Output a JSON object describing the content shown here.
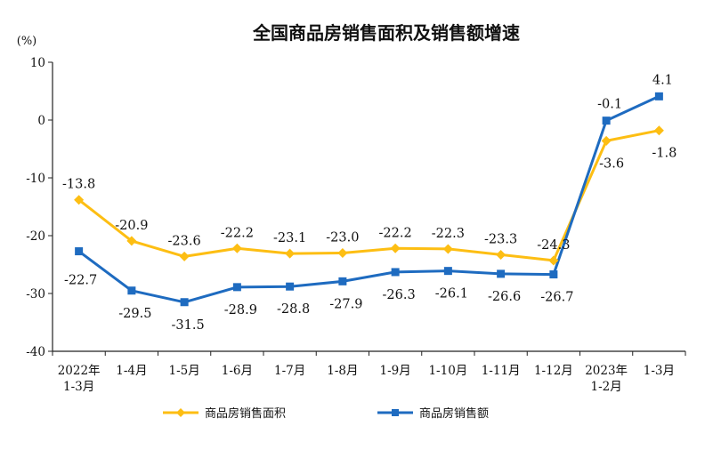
{
  "chart_data": {
    "type": "line",
    "title": "全国商品房销售面积及销售额增速",
    "ylabel": "(%)",
    "xlabel": "",
    "ylim": [
      -40,
      10
    ],
    "yticks": [
      10,
      0,
      -10,
      -20,
      -30,
      -40
    ],
    "ytick_labels": [
      "10",
      "0",
      "-10",
      "-20",
      "-30",
      "-40"
    ],
    "grid": false,
    "legend_position": "bottom",
    "categories": [
      [
        "2022年",
        "1-3月"
      ],
      [
        "1-4月"
      ],
      [
        "1-5月"
      ],
      [
        "1-6月"
      ],
      [
        "1-7月"
      ],
      [
        "1-8月"
      ],
      [
        "1-9月"
      ],
      [
        "1-10月"
      ],
      [
        "1-11月"
      ],
      [
        "1-12月"
      ],
      [
        "2023年",
        "1-2月"
      ],
      [
        "1-3月"
      ]
    ],
    "series": [
      {
        "name": "商品房销售面积",
        "color": "#FDBE13",
        "marker": "diamond",
        "values": [
          -13.8,
          -20.9,
          -23.6,
          -22.2,
          -23.1,
          -23.0,
          -22.2,
          -22.3,
          -23.3,
          -24.3,
          -3.6,
          -1.8
        ],
        "labels": [
          "-13.8",
          "-20.9",
          "-23.6",
          "-22.2",
          "-23.1",
          "-23.0",
          "-22.2",
          "-22.3",
          "-23.3",
          "-24.3",
          "-3.6",
          "-1.8"
        ]
      },
      {
        "name": "商品房销售额",
        "color": "#1E6BC0",
        "marker": "square",
        "values": [
          -22.7,
          -29.5,
          -31.5,
          -28.9,
          -28.8,
          -27.9,
          -26.3,
          -26.1,
          -26.6,
          -26.7,
          -0.1,
          4.1
        ],
        "labels": [
          "-22.7",
          "-29.5",
          "-31.5",
          "-28.9",
          "-28.8",
          "-27.9",
          "-26.3",
          "-26.1",
          "-26.6",
          "-26.7",
          "-0.1",
          "4.1"
        ]
      }
    ]
  }
}
